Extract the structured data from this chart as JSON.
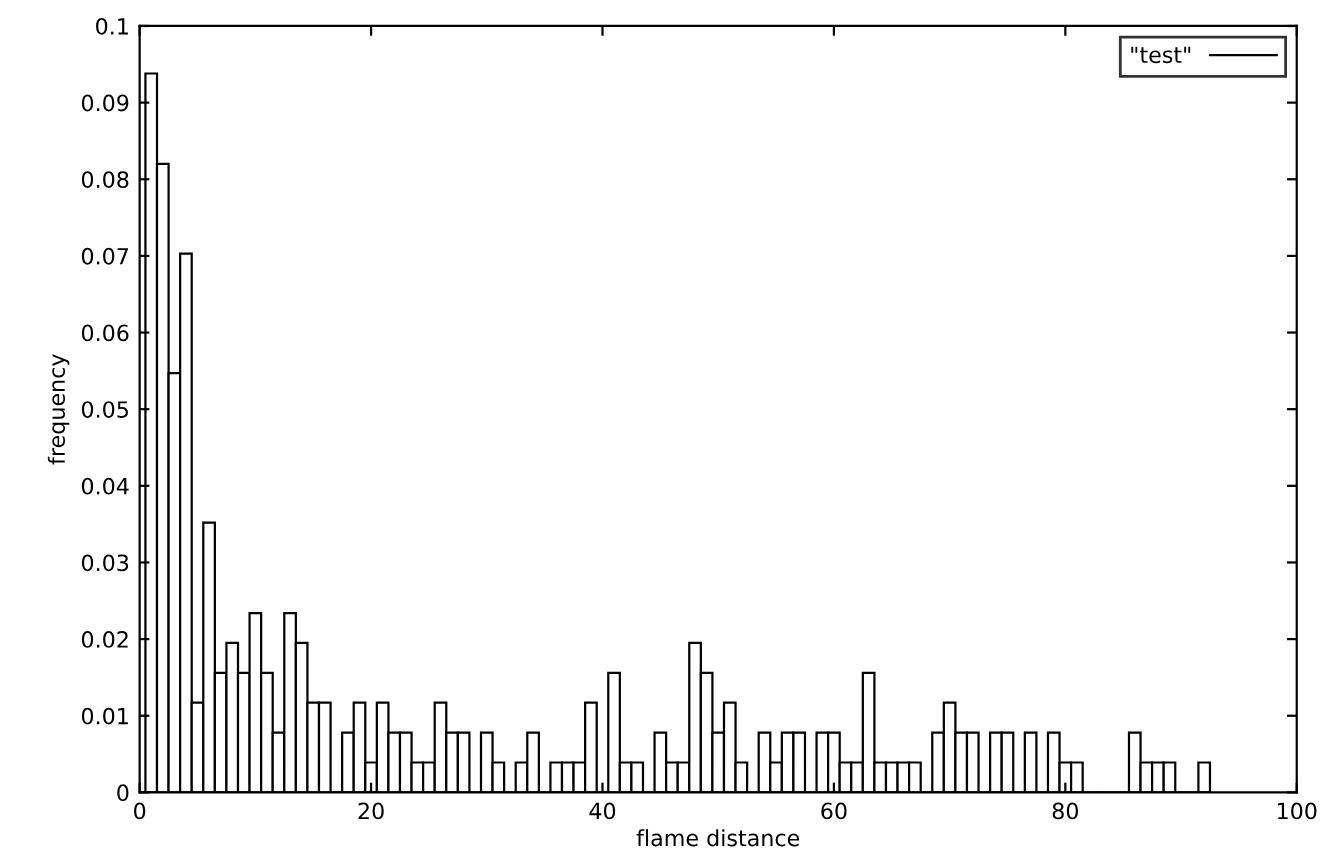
{
  "chart_data": {
    "type": "histogram",
    "xlabel": "flame distance",
    "ylabel": "frequency",
    "bins": [
      0.5,
      1.5,
      2.5,
      3.5,
      4.5,
      5.5,
      6.5,
      7.5,
      8.5,
      9.5,
      10.5,
      11.5,
      12.5,
      13.5,
      14.5,
      15.5,
      16.5,
      17.5,
      18.5,
      19.5,
      20.5,
      21.5,
      22.5,
      23.5,
      24.5,
      25.5,
      26.5,
      27.5,
      28.5,
      29.5,
      30.5,
      31.5,
      32.5,
      33.5,
      34.5,
      35.5,
      36.5,
      37.5,
      38.5,
      39.5,
      40.5,
      41.5,
      42.5,
      43.5,
      44.5,
      45.5,
      46.5,
      47.5,
      48.5,
      49.5,
      50.5,
      51.5,
      52.5,
      53.5,
      54.5,
      55.5,
      56.5,
      57.5,
      58.5,
      59.5,
      60.5,
      61.5,
      62.5,
      63.5,
      64.5,
      65.5,
      66.5,
      67.5,
      68.5,
      69.5,
      70.5,
      71.5,
      72.5,
      73.5,
      74.5,
      75.5,
      76.5,
      77.5,
      78.5,
      79.5,
      80.5,
      81.5,
      82.5,
      83.5,
      84.5,
      85.5,
      86.5,
      87.5,
      88.5,
      89.5,
      90.5,
      91.5,
      92.5
    ],
    "series": [
      {
        "name": "\"test\"",
        "color": "#000000",
        "values": [
          0.0938,
          0.082,
          0.0547,
          0.0703,
          0.0117,
          0.0352,
          0.0156,
          0.0195,
          0.0156,
          0.0234,
          0.0156,
          0.0078,
          0.0234,
          0.0195,
          0.0117,
          0.0117,
          0,
          0.0078,
          0.0117,
          0.0039,
          0.0117,
          0.0078,
          0.0078,
          0.0039,
          0.0039,
          0.0117,
          0.0078,
          0.0078,
          0,
          0.0078,
          0.0039,
          0,
          0.0039,
          0.0078,
          0,
          0.0039,
          0.0039,
          0.0039,
          0.0117,
          0,
          0.0156,
          0.0039,
          0.0039,
          0,
          0.0078,
          0.0039,
          0.0039,
          0.0195,
          0.0156,
          0.0078,
          0.0117,
          0.0039,
          0,
          0.0078,
          0.0039,
          0.0078,
          0.0078,
          0,
          0.0078,
          0.0078,
          0.0039,
          0.0039,
          0.0156,
          0.0039,
          0.0039,
          0.0039,
          0.0039,
          0,
          0.0078,
          0.0117,
          0.0078,
          0.0078,
          0,
          0.0078,
          0.0078,
          0,
          0.0078,
          0,
          0.0078,
          0.0039,
          0.0039,
          0,
          0,
          0,
          0,
          0.0078,
          0.0039,
          0.0039,
          0.0039,
          0,
          0,
          0.0039
        ]
      }
    ],
    "xlim": [
      0,
      100
    ],
    "xticks": [
      0,
      20,
      40,
      60,
      80,
      100
    ],
    "ylim": [
      0,
      0.1
    ],
    "yticks": [
      0,
      0.01,
      0.02,
      0.03,
      0.04,
      0.05,
      0.06,
      0.07,
      0.08,
      0.09,
      0.1
    ],
    "grid": false,
    "legend": "top right"
  }
}
